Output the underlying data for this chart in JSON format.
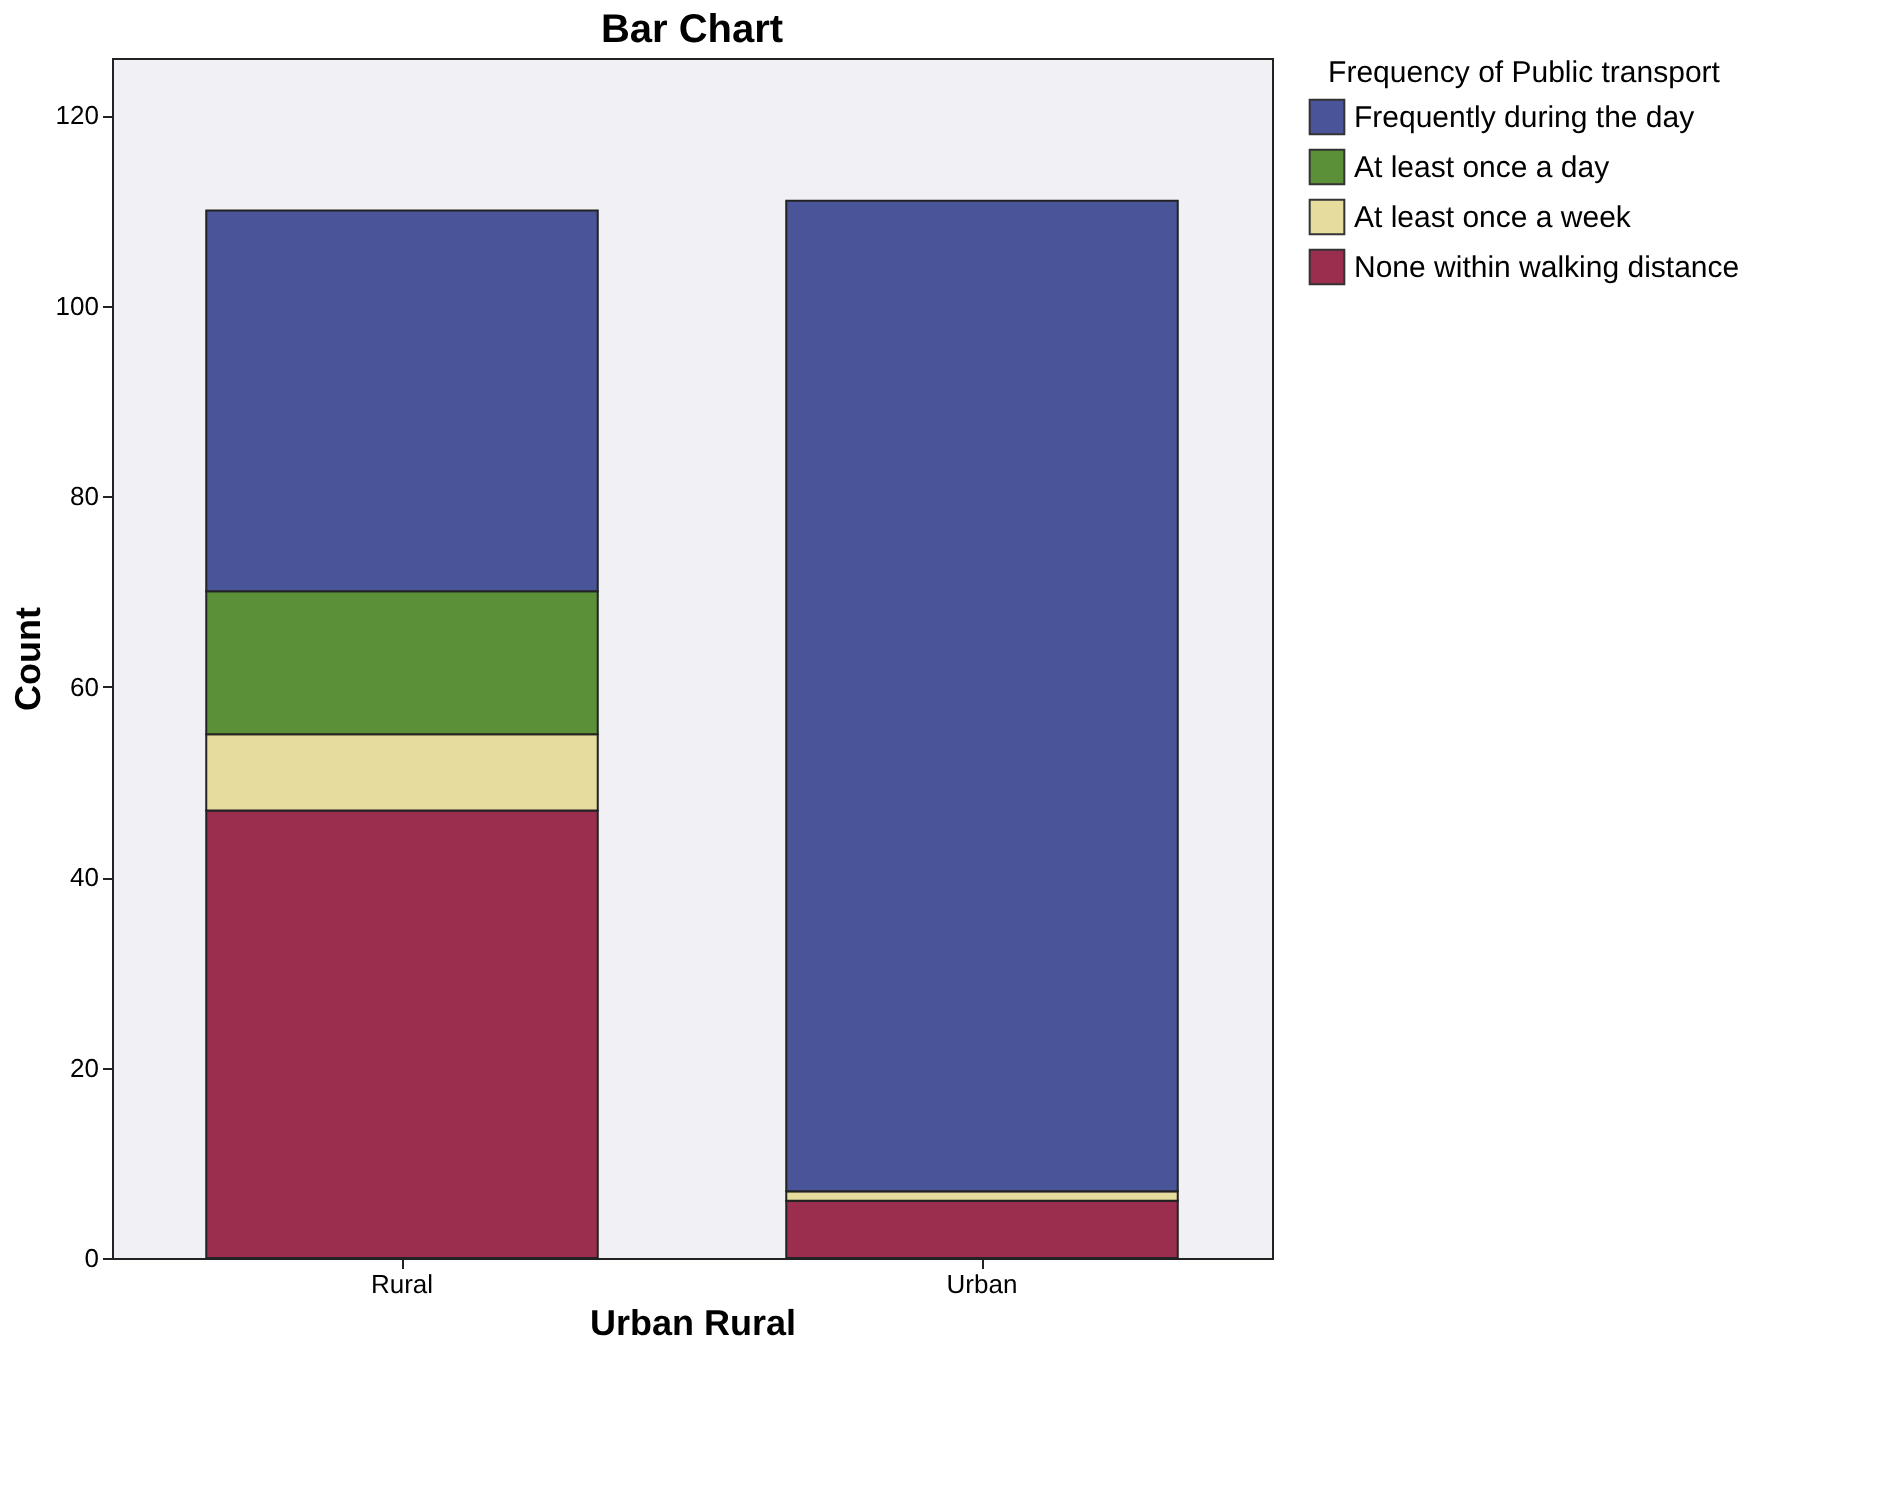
{
  "chart_data": {
    "type": "bar",
    "title": "Bar Chart",
    "xlabel": "Urban Rural",
    "ylabel": "Count",
    "legend_title": "Frequency of Public transport",
    "categories": [
      "Rural",
      "Urban"
    ],
    "stacked": true,
    "series": [
      {
        "name": "None within walking distance",
        "color": "#9b2d4e",
        "values": [
          47,
          6
        ]
      },
      {
        "name": "At least once a week",
        "color": "#e6dc9e",
        "values": [
          8,
          1
        ]
      },
      {
        "name": "At least once a day",
        "color": "#5b9038",
        "values": [
          15,
          0
        ]
      },
      {
        "name": "Frequently during the day",
        "color": "#4a5499",
        "values": [
          40,
          104
        ]
      }
    ],
    "ylim": [
      0,
      126
    ],
    "yticks": [
      0,
      20,
      40,
      60,
      80,
      100,
      120
    ],
    "grid": false,
    "legend": "top right"
  }
}
